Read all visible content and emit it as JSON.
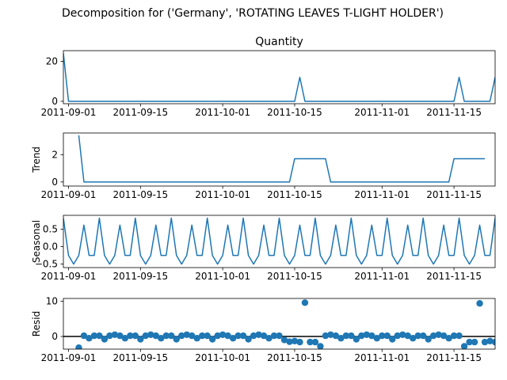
{
  "figure": {
    "suptitle": "Decomposition for ('Germany', 'ROTATING LEAVES T-LIGHT HOLDER')"
  },
  "colors": {
    "series": "#1f77b4",
    "axis": "#000000",
    "zero_line": "#000000"
  },
  "x_ticks": [
    "2011-09-01",
    "2011-09-15",
    "2011-10-01",
    "2011-10-15",
    "2011-11-01",
    "2011-11-15"
  ],
  "chart_data": [
    {
      "type": "line",
      "title": "Quantity",
      "ylabel": "",
      "x_start": "2011-08-31",
      "x_end": "2011-11-23",
      "ylim": [
        -1.2,
        25.3
      ],
      "yticks": [
        0,
        20
      ],
      "ytick_labels": [
        "0",
        "20"
      ],
      "series": [
        {
          "values": [
            24,
            0,
            0,
            0,
            0,
            0,
            0,
            0,
            0,
            0,
            0,
            0,
            0,
            0,
            0,
            0,
            0,
            0,
            0,
            0,
            0,
            0,
            0,
            0,
            0,
            0,
            0,
            0,
            0,
            0,
            0,
            0,
            0,
            0,
            0,
            0,
            0,
            0,
            0,
            0,
            0,
            0,
            0,
            0,
            0,
            0,
            12,
            0,
            0,
            0,
            0,
            0,
            0,
            0,
            0,
            0,
            0,
            0,
            0,
            0,
            0,
            0,
            0,
            0,
            0,
            0,
            0,
            0,
            0,
            0,
            0,
            0,
            0,
            0,
            0,
            0,
            0,
            12,
            0,
            0,
            0,
            0,
            0,
            0,
            12
          ]
        }
      ]
    },
    {
      "type": "line",
      "title": "",
      "ylabel": "Trend",
      "x_start": "2011-08-31",
      "x_end": "2011-11-23",
      "ylim": [
        -0.3,
        3.6
      ],
      "yticks": [
        0,
        2
      ],
      "ytick_labels": [
        "0",
        "2"
      ],
      "series": [
        {
          "x_range": [
            "2011-09-03",
            "2011-11-20"
          ],
          "values": [
            3.43,
            0,
            0,
            0,
            0,
            0,
            0,
            0,
            0,
            0,
            0,
            0,
            0,
            0,
            0,
            0,
            0,
            0,
            0,
            0,
            0,
            0,
            0,
            0,
            0,
            0,
            0,
            0,
            0,
            0,
            0,
            0,
            0,
            0,
            0,
            0,
            0,
            0,
            0,
            0,
            0,
            0,
            1.71,
            1.71,
            1.71,
            1.71,
            1.71,
            1.71,
            1.71,
            0,
            0,
            0,
            0,
            0,
            0,
            0,
            0,
            0,
            0,
            0,
            0,
            0,
            0,
            0,
            0,
            0,
            0,
            0,
            0,
            0,
            0,
            0,
            0,
            1.71,
            1.71,
            1.71,
            1.71,
            1.71,
            1.71,
            1.71
          ]
        }
      ]
    },
    {
      "type": "line",
      "title": "",
      "ylabel": "Seasonal",
      "x_start": "2011-08-31",
      "x_end": "2011-11-23",
      "ylim": [
        -0.6,
        0.9
      ],
      "yticks": [
        -0.5,
        0.0,
        0.5
      ],
      "ytick_labels": [
        "−0.5",
        "0.0",
        "0.5"
      ],
      "series": [
        {
          "pattern": [
            0.82,
            -0.25,
            -0.5,
            -0.25,
            0.62,
            -0.25,
            -0.25
          ],
          "values": [
            0.82,
            -0.25,
            -0.5,
            -0.25,
            0.62,
            -0.25,
            -0.25,
            0.82,
            -0.25,
            -0.5,
            -0.25,
            0.62,
            -0.25,
            -0.25,
            0.82,
            -0.25,
            -0.5,
            -0.25,
            0.62,
            -0.25,
            -0.25,
            0.82,
            -0.25,
            -0.5,
            -0.25,
            0.62,
            -0.25,
            -0.25,
            0.82,
            -0.25,
            -0.5,
            -0.25,
            0.62,
            -0.25,
            -0.25,
            0.82,
            -0.25,
            -0.5,
            -0.25,
            0.62,
            -0.25,
            -0.25,
            0.82,
            -0.25,
            -0.5,
            -0.25,
            0.62,
            -0.25,
            -0.25,
            0.82,
            -0.25,
            -0.5,
            -0.25,
            0.62,
            -0.25,
            -0.25,
            0.82,
            -0.25,
            -0.5,
            -0.25,
            0.62,
            -0.25,
            -0.25,
            0.82,
            -0.25,
            -0.5,
            -0.25,
            0.62,
            -0.25,
            -0.25,
            0.82,
            -0.25,
            -0.5,
            -0.25,
            0.62,
            -0.25,
            -0.25,
            0.82,
            -0.25,
            -0.5,
            -0.25,
            0.62,
            -0.25,
            -0.25,
            0.82
          ]
        }
      ]
    },
    {
      "type": "scatter",
      "title": "",
      "ylabel": "Resid",
      "x_start": "2011-08-31",
      "x_end": "2011-11-23",
      "ylim": [
        -3.6,
        10.8
      ],
      "yticks": [
        0,
        10
      ],
      "ytick_labels": [
        "0",
        "10"
      ],
      "zero_line": true,
      "series": [
        {
          "x_range": [
            "2011-09-03",
            "2011-11-20"
          ],
          "values": [
            -3.2,
            0.2,
            -0.5,
            0.2,
            0.2,
            -0.8,
            0.2,
            0.5,
            0.2,
            -0.5,
            0.2,
            0.2,
            -0.8,
            0.2,
            0.5,
            0.2,
            -0.5,
            0.2,
            0.2,
            -0.8,
            0.2,
            0.5,
            0.2,
            -0.5,
            0.2,
            0.2,
            -0.8,
            0.2,
            0.5,
            0.2,
            -0.5,
            0.2,
            0.2,
            -0.8,
            0.2,
            0.5,
            0.2,
            -0.5,
            0.2,
            0.2,
            -1.0,
            -1.5,
            -1.3,
            -1.6,
            9.6,
            -1.6,
            -1.6,
            -2.8,
            0.2,
            0.5,
            0.2,
            -0.5,
            0.2,
            0.2,
            -0.8,
            0.2,
            0.5,
            0.2,
            -0.5,
            0.2,
            0.2,
            -0.8,
            0.2,
            0.5,
            0.2,
            -0.5,
            0.2,
            0.2,
            -0.8,
            0.2,
            0.5,
            0.2,
            -0.5,
            0.2,
            0.2,
            -2.8,
            -1.6,
            -1.6,
            9.4,
            -1.6,
            -1.3,
            -1.6,
            -2.6
          ]
        }
      ]
    }
  ]
}
